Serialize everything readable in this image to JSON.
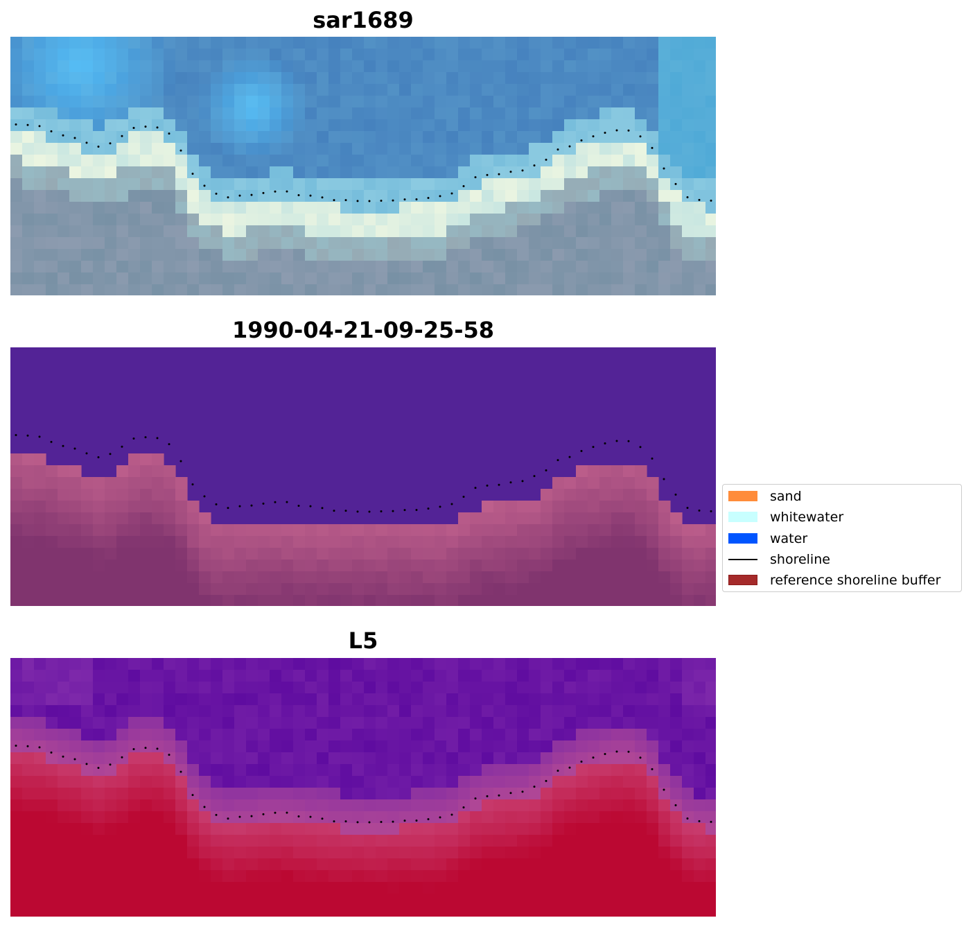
{
  "panels": [
    {
      "title": "sar1689",
      "style": "rgb"
    },
    {
      "title": "1990-04-21-09-25-58",
      "style": "classified"
    },
    {
      "title": "L5",
      "style": "index"
    }
  ],
  "legend": [
    {
      "label": "sand",
      "type": "patch",
      "color": "#ff8c3a",
      "border": "#ff8c3a"
    },
    {
      "label": "whitewater",
      "type": "patch",
      "color": "#c8ffff",
      "border": "#c8ffff"
    },
    {
      "label": "water",
      "type": "patch",
      "color": "#0055ff",
      "border": "#0055ff"
    },
    {
      "label": "shoreline",
      "type": "line",
      "color": "#000000"
    },
    {
      "label": "reference shoreline buffer",
      "type": "patch",
      "color": "#a52a2a",
      "border": "#8b1a1a"
    }
  ],
  "colors": {
    "classified_water": "#532396",
    "classified_buffer": "#863a73",
    "index_low": "#5c0aa0",
    "index_high": "#bb0832",
    "shoreline_dots": "#000000"
  }
}
